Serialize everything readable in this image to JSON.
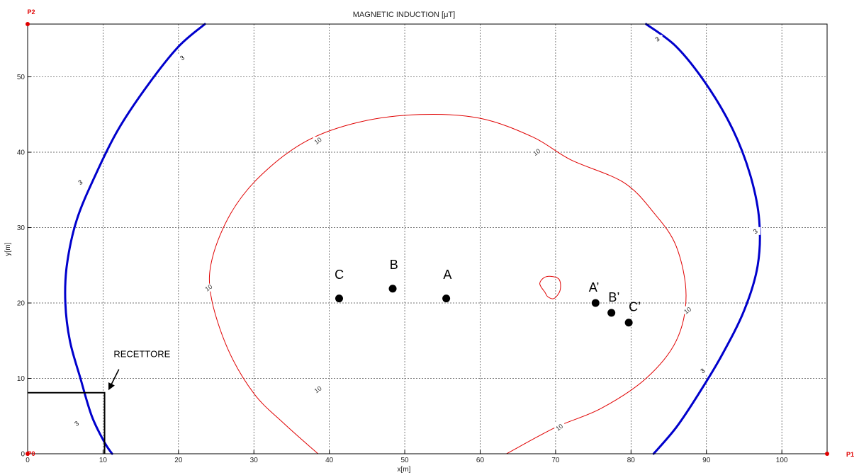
{
  "chart_data": {
    "type": "contour",
    "title": "MAGNETIC INDUCTION [μT]",
    "xlabel": "x[m]",
    "ylabel": "y[m]",
    "xlim": [
      0,
      106
    ],
    "ylim": [
      0,
      57
    ],
    "xticks": [
      0,
      10,
      20,
      30,
      40,
      50,
      60,
      70,
      80,
      90,
      100
    ],
    "yticks": [
      0,
      10,
      20,
      30,
      40,
      50
    ],
    "grid": true,
    "contours": [
      {
        "level": "3",
        "color": "#0000cc",
        "label_at": [
          [
            20.5,
            52.5
          ],
          [
            7.0,
            36.0
          ],
          [
            6.5,
            4.0
          ]
        ],
        "points": [
          [
            23.5,
            57
          ],
          [
            20,
            54
          ],
          [
            16,
            49
          ],
          [
            12,
            43
          ],
          [
            9,
            37
          ],
          [
            6.5,
            31
          ],
          [
            5.2,
            25
          ],
          [
            5.0,
            20
          ],
          [
            5.6,
            15
          ],
          [
            7,
            10
          ],
          [
            8.5,
            5
          ],
          [
            10.2,
            1.5
          ],
          [
            11.2,
            0
          ]
        ]
      },
      {
        "level": "3",
        "color": "#0000cc",
        "label_at": [
          [
            83.5,
            55.0
          ],
          [
            96.5,
            29.5
          ],
          [
            89.5,
            11.0
          ]
        ],
        "points": [
          [
            82,
            57
          ],
          [
            86,
            54
          ],
          [
            90,
            49
          ],
          [
            93.5,
            43
          ],
          [
            95.8,
            37
          ],
          [
            97,
            31
          ],
          [
            96.8,
            25
          ],
          [
            95,
            19
          ],
          [
            92,
            13
          ],
          [
            89,
            8
          ],
          [
            86,
            3.5
          ],
          [
            83,
            0
          ]
        ]
      },
      {
        "level": "10",
        "color": "#e00000",
        "label_at": [
          [
            38.5,
            8.5
          ],
          [
            24.0,
            22.0
          ],
          [
            38.5,
            41.5
          ],
          [
            67.5,
            40.0
          ],
          [
            87.5,
            19.0
          ],
          [
            70.5,
            3.5
          ]
        ],
        "points": [
          [
            38.5,
            0
          ],
          [
            34,
            4
          ],
          [
            30,
            8
          ],
          [
            26.5,
            14
          ],
          [
            24.3,
            21
          ],
          [
            24.5,
            26
          ],
          [
            27,
            32
          ],
          [
            31,
            37
          ],
          [
            37,
            41.5
          ],
          [
            44,
            44
          ],
          [
            52,
            45
          ],
          [
            60,
            44.5
          ],
          [
            67,
            42
          ],
          [
            72,
            39
          ],
          [
            79,
            36
          ],
          [
            83,
            32
          ],
          [
            86,
            27.5
          ],
          [
            87.3,
            21
          ],
          [
            86,
            15
          ],
          [
            82,
            10
          ],
          [
            76,
            6
          ],
          [
            70,
            3.5
          ],
          [
            63.5,
            0
          ]
        ]
      },
      {
        "level": "10",
        "color": "#e00000",
        "label_at": [],
        "closed": true,
        "points": [
          [
            68.6,
            21.4
          ],
          [
            67.9,
            22.6
          ],
          [
            68.8,
            23.5
          ],
          [
            70.4,
            23.2
          ],
          [
            70.6,
            21.7
          ],
          [
            69.8,
            20.6
          ],
          [
            69.0,
            20.8
          ]
        ]
      }
    ],
    "points": [
      {
        "label": "C",
        "x": 41.3,
        "y": 20.6,
        "label_dx": -0.6,
        "label_dy": 2.6
      },
      {
        "label": "B",
        "x": 48.4,
        "y": 21.9,
        "label_dx": -0.4,
        "label_dy": 2.6
      },
      {
        "label": "A",
        "x": 55.5,
        "y": 20.6,
        "label_dx": -0.4,
        "label_dy": 2.6
      },
      {
        "label": "A’",
        "x": 75.3,
        "y": 20.0,
        "label_dx": -0.9,
        "label_dy": 1.5
      },
      {
        "label": "B’",
        "x": 77.4,
        "y": 18.7,
        "label_dx": -0.4,
        "label_dy": 1.5
      },
      {
        "label": "C’",
        "x": 79.7,
        "y": 17.4,
        "label_dx": 0.0,
        "label_dy": 1.5
      }
    ],
    "receptor": {
      "label": "RECETTORE",
      "rect": {
        "x0": 0,
        "y0": 0,
        "x1": 10.2,
        "y1": 8.1
      },
      "label_at": [
        11.4,
        12.8
      ],
      "arrow_from": [
        12.1,
        11.2
      ],
      "arrow_to": [
        10.8,
        8.6
      ]
    },
    "corner_markers": [
      {
        "label": "P0",
        "x": 0,
        "y": 0
      },
      {
        "label": "P1",
        "x": 106,
        "y": 0
      },
      {
        "label": "P2",
        "x": 0,
        "y": 57
      }
    ]
  }
}
